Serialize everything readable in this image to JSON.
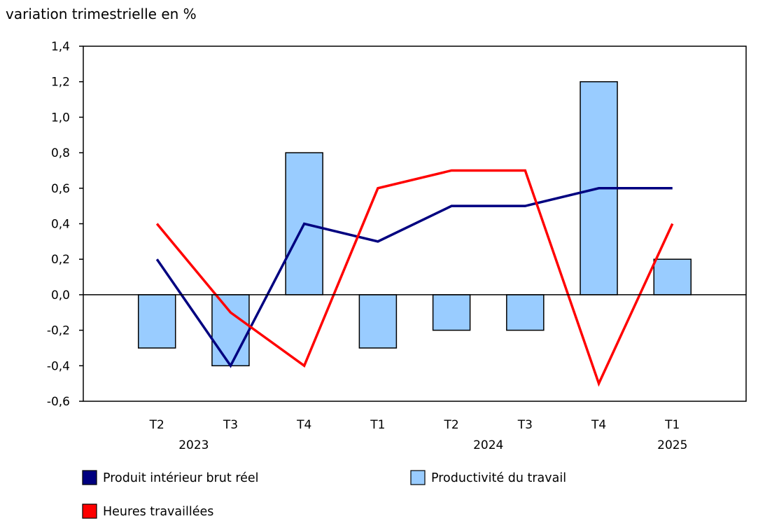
{
  "chart_data": {
    "type": "bar+line",
    "title": "variation trimestrielle en %",
    "categories": [
      "T2",
      "T3",
      "T4",
      "T1",
      "T2",
      "T3",
      "T4",
      "T1"
    ],
    "year_labels": [
      {
        "label": "2023",
        "span": [
          0,
          1
        ]
      },
      {
        "label": "2024",
        "span": [
          3,
          6
        ]
      },
      {
        "label": "2025",
        "span": [
          7,
          7
        ]
      }
    ],
    "ylim": [
      -0.6,
      1.4
    ],
    "yticks": [
      "1,4",
      "1,2",
      "1,0",
      "0,8",
      "0,6",
      "0,4",
      "0,2",
      "0,0",
      "-0,2",
      "-0,4",
      "-0,6"
    ],
    "ytick_values": [
      1.4,
      1.2,
      1.0,
      0.8,
      0.6,
      0.4,
      0.2,
      0.0,
      -0.2,
      -0.4,
      -0.6
    ],
    "grid": false,
    "legend_position": "bottom",
    "series": [
      {
        "name": "Produit intérieur brut réel",
        "type": "line",
        "color": "#000080",
        "values": [
          0.2,
          -0.4,
          0.4,
          0.3,
          0.5,
          0.5,
          0.6,
          0.6
        ]
      },
      {
        "name": "Productivité du travail",
        "type": "bar",
        "color": "#99ccff",
        "values": [
          -0.3,
          -0.4,
          0.8,
          -0.3,
          -0.2,
          -0.2,
          1.2,
          0.2
        ]
      },
      {
        "name": "Heures travaillées",
        "type": "line",
        "color": "#ff0000",
        "values": [
          0.4,
          -0.1,
          -0.4,
          0.6,
          0.7,
          0.7,
          -0.5,
          0.4
        ]
      }
    ]
  }
}
